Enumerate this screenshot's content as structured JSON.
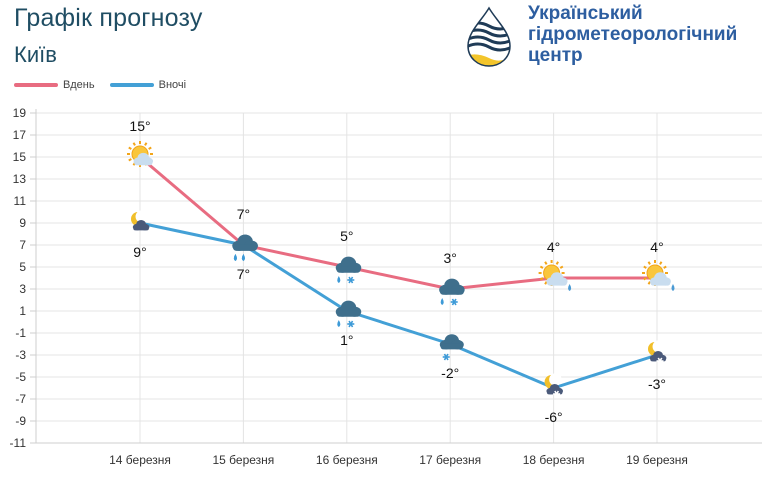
{
  "header": {
    "title": "Графік прогнозу",
    "city": "Київ"
  },
  "org": {
    "line1": "Український",
    "line2": "гідрометеорологічний",
    "line3": "центр"
  },
  "colors": {
    "day": "#e86c81",
    "night": "#43a0d6",
    "grid": "#e4e4e4",
    "title": "#1f4d63",
    "org": "#2d5ea0"
  },
  "chart_data": {
    "type": "line",
    "title": "Графік прогнозу",
    "categories": [
      "14 березня",
      "15 березня",
      "16 березня",
      "17 березня",
      "18 березня",
      "19 березня"
    ],
    "series": [
      {
        "name": "Вдень",
        "values": [
          15,
          7,
          5,
          3,
          4,
          4
        ],
        "labels": [
          "15°",
          "7°",
          "5°",
          "3°",
          "4°",
          "4°"
        ],
        "icons": [
          "sun-cloud-icon",
          "cloud-rain-icon",
          "cloud-rain-snow-icon",
          "cloud-rain-snow-icon",
          "sun-cloud-rain-icon",
          "sun-cloud-rain-icon"
        ]
      },
      {
        "name": "Вночі",
        "values": [
          9,
          7,
          1,
          -2,
          -6,
          -3
        ],
        "labels": [
          "9°",
          "7°",
          "1°",
          "-2°",
          "-6°",
          "-3°"
        ],
        "icons": [
          "moon-cloud-icon",
          "cloud-rain-icon",
          "cloud-rain-snow-icon",
          "cloud-snow-icon",
          "moon-cloud-snow-icon",
          "moon-cloud-snow-icon"
        ]
      }
    ],
    "yticks": [
      19,
      17,
      15,
      13,
      11,
      9,
      7,
      5,
      3,
      1,
      -1,
      -3,
      -5,
      -7,
      -9,
      -11
    ],
    "ylim": [
      -11,
      19
    ],
    "legend": "top-left",
    "grid": true
  }
}
